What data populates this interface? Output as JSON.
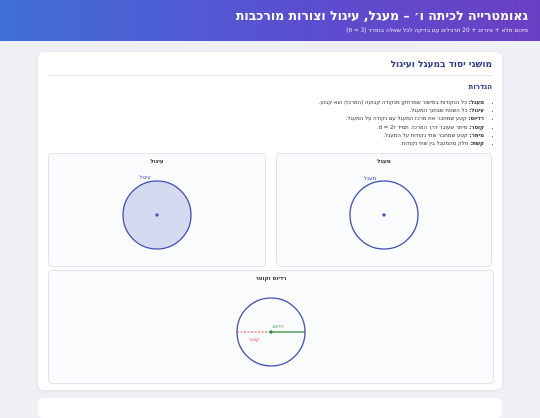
{
  "header": {
    "title": "גאומטרייה לכיתה ו׳ – מעגל, עיגול וצורות מורכבות",
    "subtitle": "סיכום מלא + ציורים + 20 תרגילים עם בדיקה לכל שאלה בנפרד (π ≈ 3)"
  },
  "section": {
    "title": "מושגי יסוד במעגל ועיגול",
    "definitions_heading": "הגדרות",
    "definitions": [
      {
        "term": "מעגל:",
        "text": "כל הנקודות במישור שמרחקן מנקודה קבועה (המרכז) הוא קבוע."
      },
      {
        "term": "עיגול:",
        "text": "כל השטח שבתוך המעגל."
      },
      {
        "term": "רדיוס:",
        "text": "קטע שמחבר את מרכז המעגל עם נקודה על המעגל."
      },
      {
        "term": "קוטר:",
        "text": "מיתר שעובר דרך המרכז. תמיד d = 2r."
      },
      {
        "term": "מיתר:",
        "text": "קטע שמחבר שתי נקודות על המעגל."
      },
      {
        "term": "קשת:",
        "text": "חלק מהמעגל בין שתי נקודות."
      }
    ]
  },
  "panels": {
    "circle": {
      "title": "מעגל",
      "label": "מעגל"
    },
    "disk": {
      "title": "עיגול",
      "label": "עיגול"
    },
    "radius_diameter": {
      "title": "רדיוס וקוטר",
      "radius_label": "רדיוס",
      "diameter_label": "קוטר"
    }
  },
  "colors": {
    "accent": "#3f4fb5",
    "disk_fill": "#d6daf0",
    "radius": "#2e8b3a",
    "diameter": "#e0504a",
    "title": "#2f3a8f"
  }
}
